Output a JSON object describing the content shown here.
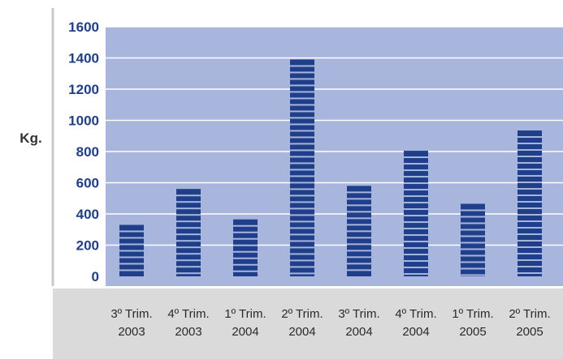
{
  "chart_data": {
    "type": "bar",
    "title": "",
    "xlabel": "",
    "ylabel": "Kg.",
    "ylim": [
      0,
      1600
    ],
    "yticks": [
      0,
      200,
      400,
      600,
      800,
      1000,
      1200,
      1400,
      1600
    ],
    "grid": true,
    "legend": "none",
    "categories": [
      [
        "3º Trim.",
        "2003"
      ],
      [
        "4º Trim.",
        "2003"
      ],
      [
        "1º Trim.",
        "2004"
      ],
      [
        "2º Trim.",
        "2004"
      ],
      [
        "3º Trim.",
        "2004"
      ],
      [
        "4º Trim.",
        "2004"
      ],
      [
        "1º Trim.",
        "2005"
      ],
      [
        "2º Trim.",
        "2005"
      ]
    ],
    "values": [
      330,
      560,
      365,
      1390,
      580,
      805,
      465,
      935
    ],
    "colors": {
      "plot_background": "#a8b6dd",
      "bar": "#1f3f8a",
      "bar_stripe_gap": "#a8b6dd",
      "axis_band": "#dadada",
      "gridline": "#ffffff",
      "tick_text": "#1f3f8a"
    }
  }
}
